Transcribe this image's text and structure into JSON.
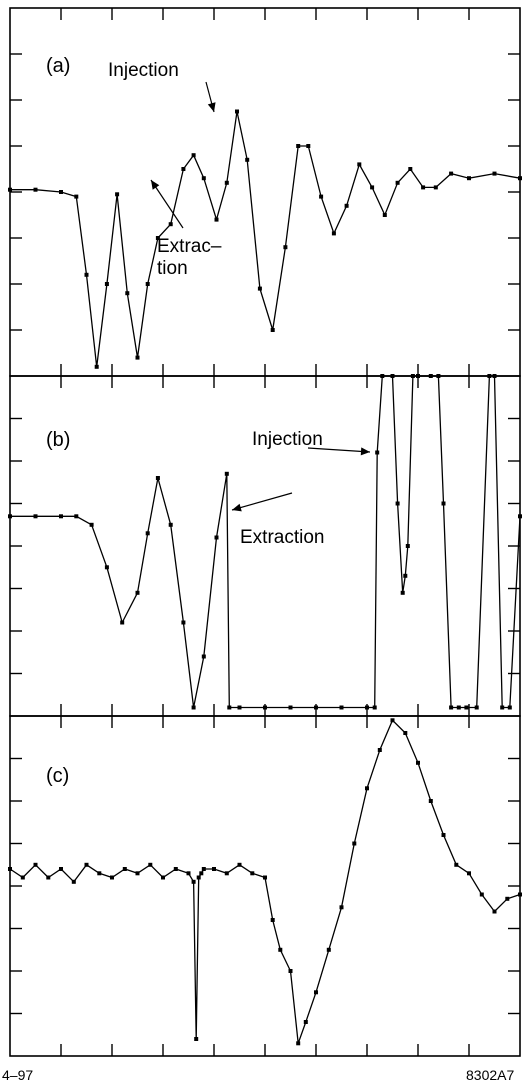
{
  "footer": {
    "left": "4–97",
    "right": "8302A7"
  },
  "chart_data": [
    {
      "type": "line",
      "panel_label": "(a)",
      "xlim": [
        0,
        20
      ],
      "ylim": [
        -4,
        4
      ],
      "xticks": 10,
      "yticks": 8,
      "annotations": [
        {
          "lines": [
            "Injection"
          ],
          "x": 8.4,
          "y": 0.2
        },
        {
          "lines": [
            "Extrac–",
            "tion"
          ],
          "x": 5.6,
          "y": -0.6
        }
      ],
      "series": [
        {
          "x": [
            0,
            1,
            2,
            2.6,
            3.0,
            3.4,
            3.8,
            4.2,
            4.6,
            5.0,
            5.4,
            5.8,
            6.3,
            6.8,
            7.2,
            7.6,
            8.1,
            8.5,
            8.9,
            9.3,
            9.8,
            10.3,
            10.8,
            11.3,
            11.7,
            12.2,
            12.7,
            13.2,
            13.7,
            14.2,
            14.7,
            15.2,
            15.7,
            16.2,
            16.7,
            17.3,
            18,
            19,
            20
          ],
          "y": [
            0.05,
            0.05,
            0.0,
            -0.1,
            -1.8,
            -3.8,
            -2.0,
            -0.05,
            -2.2,
            -3.6,
            -2.0,
            -1.0,
            -0.7,
            0.5,
            0.8,
            0.3,
            -0.6,
            0.2,
            1.75,
            0.7,
            -2.1,
            -3.0,
            -1.2,
            1.0,
            1.0,
            -0.1,
            -0.9,
            -0.3,
            0.6,
            0.1,
            -0.5,
            0.2,
            0.5,
            0.1,
            0.1,
            0.4,
            0.3,
            0.4,
            0.3
          ]
        }
      ]
    },
    {
      "type": "line",
      "panel_label": "(b)",
      "xlim": [
        0,
        20
      ],
      "ylim": [
        -4,
        4
      ],
      "xticks": 10,
      "yticks": 8,
      "annotations": [
        {
          "lines": [
            "Injection"
          ],
          "x": 14.1,
          "y": 2.1
        },
        {
          "lines": [
            "Extraction"
          ],
          "x": 8.8,
          "y": 1.05
        }
      ],
      "series": [
        {
          "x": [
            0,
            1,
            2,
            2.6,
            3.2,
            3.8,
            4.4,
            5.0,
            5.4,
            5.8,
            6.3,
            6.8,
            7.2,
            7.6,
            8.1,
            8.5,
            8.6,
            9,
            10,
            11,
            12,
            13,
            14,
            14.3,
            14.4,
            14.6,
            15.0,
            15.2,
            15.4,
            15.5,
            15.6,
            15.8,
            16.0,
            16.5,
            16.8,
            17.0,
            17.3,
            17.6,
            17.9,
            18.3,
            18.8,
            19.0,
            19.3,
            19.6,
            20
          ],
          "y": [
            0.7,
            0.7,
            0.7,
            0.7,
            0.5,
            -0.5,
            -1.8,
            -1.1,
            0.3,
            1.6,
            0.5,
            -1.8,
            -3.8,
            -2.6,
            0.2,
            1.7,
            -3.8,
            -3.8,
            -3.8,
            -3.8,
            -3.8,
            -3.8,
            -3.8,
            -3.8,
            2.2,
            4.0,
            4.0,
            1.0,
            -1.1,
            -0.7,
            0.0,
            4.0,
            4.0,
            4.0,
            4.0,
            1.0,
            -3.8,
            -3.8,
            -3.8,
            -3.8,
            4.0,
            4.0,
            -3.8,
            -3.8,
            0.7
          ]
        }
      ]
    },
    {
      "type": "line",
      "panel_label": "(c)",
      "xlim": [
        0,
        20
      ],
      "ylim": [
        -4,
        4
      ],
      "xticks": 10,
      "yticks": 8,
      "annotations": [],
      "series": [
        {
          "x": [
            0,
            0.5,
            1,
            1.5,
            2,
            2.5,
            3,
            3.5,
            4,
            4.5,
            5,
            5.5,
            6,
            6.5,
            7,
            7.2,
            7.3,
            7.4,
            7.5,
            7.6,
            8,
            8.5,
            9,
            9.5,
            10,
            10.3,
            10.6,
            11,
            11.3,
            11.6,
            12,
            12.5,
            13,
            13.5,
            14,
            14.5,
            15,
            15.5,
            16,
            16.5,
            17,
            17.5,
            18,
            18.5,
            19,
            19.5,
            20
          ],
          "y": [
            0.4,
            0.2,
            0.5,
            0.2,
            0.4,
            0.1,
            0.5,
            0.3,
            0.2,
            0.4,
            0.3,
            0.5,
            0.2,
            0.4,
            0.3,
            0.1,
            -3.6,
            0.2,
            0.3,
            0.4,
            0.4,
            0.3,
            0.5,
            0.3,
            0.2,
            -0.8,
            -1.5,
            -2.0,
            -3.7,
            -3.2,
            -2.5,
            -1.5,
            -0.5,
            1.0,
            2.3,
            3.2,
            3.9,
            3.6,
            2.9,
            2.0,
            1.2,
            0.5,
            0.3,
            -0.2,
            -0.6,
            -0.3,
            -0.2
          ]
        }
      ]
    }
  ]
}
